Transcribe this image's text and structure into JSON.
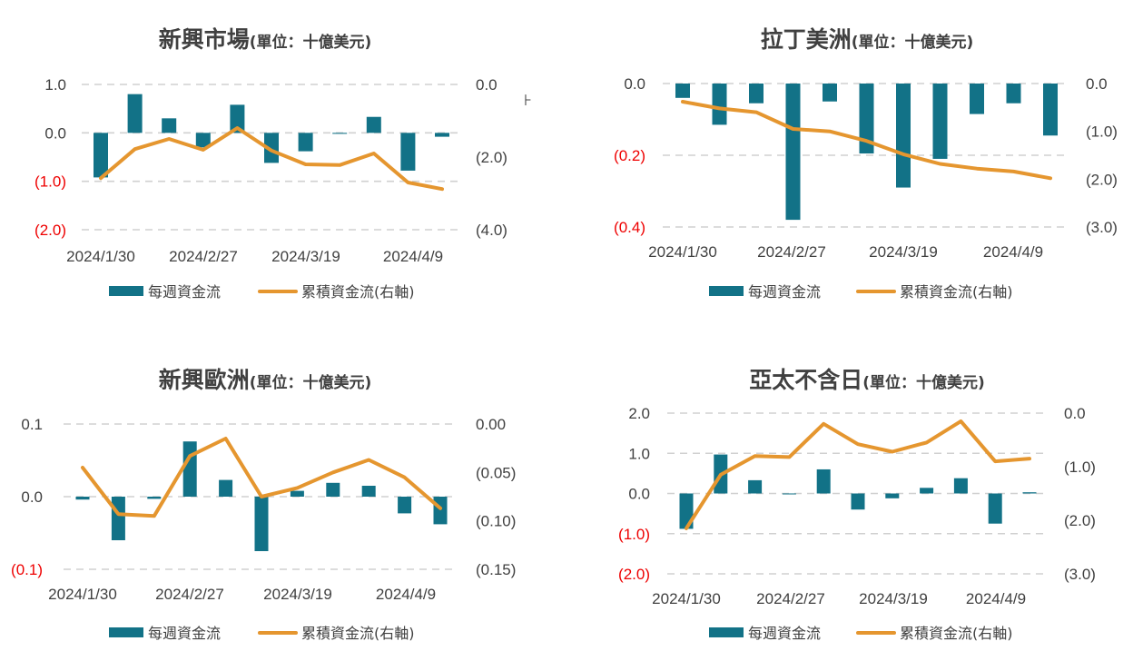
{
  "colors": {
    "bar": "#127287",
    "line": "#E5962F",
    "negative_tick": "#EE0000",
    "text": "#404040",
    "grid": "#D0D0D0"
  },
  "legend": {
    "bar_label": "每週資金流",
    "line_label": "累積資金流(右軸)"
  },
  "chart_data": [
    {
      "type": "bar+line",
      "title": "新興市場",
      "title_unit": "(單位：十億美元)",
      "x_tick_labels": [
        "2024/1/30",
        "2024/2/27",
        "2024/3/19",
        "2024/4/9"
      ],
      "left_axis": {
        "ylim": [
          -2.0,
          1.0
        ],
        "ticks": [
          1.0,
          0.0,
          -1.0,
          -2.0
        ],
        "tick_labels": [
          "1.0",
          "0.0",
          "(1.0)",
          "(2.0)"
        ]
      },
      "right_axis": {
        "ylim": [
          -4.0,
          0.0
        ],
        "ticks": [
          0.0,
          -2.0,
          -4.0
        ],
        "tick_labels": [
          "0.0",
          "(2.0)",
          "(4.0)"
        ]
      },
      "series": [
        {
          "name": "每週資金流",
          "axis": "left",
          "values": [
            -0.92,
            0.8,
            0.3,
            -0.3,
            0.58,
            -0.62,
            -0.38,
            -0.02,
            0.33,
            -0.78,
            -0.08
          ]
        },
        {
          "name": "累積資金流(右軸)",
          "axis": "right",
          "values": [
            -2.58,
            -1.78,
            -1.5,
            -1.8,
            -1.2,
            -1.82,
            -2.2,
            -2.22,
            -1.9,
            -2.7,
            -2.88
          ]
        }
      ]
    },
    {
      "type": "bar+line",
      "title": "拉丁美洲",
      "title_unit": "(單位：十億美元)",
      "x_tick_labels": [
        "2024/1/30",
        "2024/2/27",
        "2024/3/19",
        "2024/4/9"
      ],
      "left_axis": {
        "ylim": [
          -0.4,
          0.0
        ],
        "ticks": [
          0.0,
          -0.2,
          -0.4
        ],
        "tick_labels": [
          "0.0",
          "(0.2)",
          "(0.4)"
        ]
      },
      "right_axis": {
        "ylim": [
          -3.0,
          0.0
        ],
        "ticks": [
          0.0,
          -1.0,
          -2.0,
          -3.0
        ],
        "tick_labels": [
          "0.0",
          "(1.0)",
          "(2.0)",
          "(3.0)"
        ]
      },
      "series": [
        {
          "name": "每週資金流",
          "axis": "left",
          "values": [
            -0.04,
            -0.115,
            -0.055,
            -0.38,
            -0.05,
            -0.195,
            -0.29,
            -0.21,
            -0.085,
            -0.055,
            -0.145
          ]
        },
        {
          "name": "累積資金流(右軸)",
          "axis": "right",
          "values": [
            -0.38,
            -0.52,
            -0.6,
            -0.95,
            -1.0,
            -1.2,
            -1.48,
            -1.68,
            -1.78,
            -1.84,
            -1.98
          ]
        }
      ]
    },
    {
      "type": "bar+line",
      "title": "新興歐洲",
      "title_unit": "(單位：十億美元)",
      "x_tick_labels": [
        "2024/1/30",
        "2024/2/27",
        "2024/3/19",
        "2024/4/9"
      ],
      "left_axis": {
        "ylim": [
          -0.1,
          0.1
        ],
        "ticks": [
          0.1,
          0.0,
          -0.1
        ],
        "tick_labels": [
          "0.1",
          "0.0",
          "(0.1)"
        ]
      },
      "right_axis": {
        "ylim": [
          -0.15,
          0.0
        ],
        "ticks": [
          0.0,
          -0.05,
          -0.1,
          -0.15
        ],
        "tick_labels": [
          "0.00",
          "(0.05)",
          "(0.10)",
          "(0.15)"
        ]
      },
      "series": [
        {
          "name": "每週資金流",
          "axis": "left",
          "values": [
            -0.004,
            -0.06,
            -0.003,
            0.076,
            0.023,
            -0.075,
            0.008,
            0.019,
            0.015,
            -0.023,
            -0.038
          ]
        },
        {
          "name": "累積資金流(右軸)",
          "axis": "right",
          "values": [
            -0.045,
            -0.093,
            -0.095,
            -0.033,
            -0.015,
            -0.075,
            -0.066,
            -0.05,
            -0.037,
            -0.055,
            -0.087
          ]
        }
      ]
    },
    {
      "type": "bar+line",
      "title": "亞太不含日",
      "title_unit": "(單位：十億美元)",
      "x_tick_labels": [
        "2024/1/30",
        "2024/2/27",
        "2024/3/19",
        "2024/4/9"
      ],
      "left_axis": {
        "ylim": [
          -2.0,
          2.0
        ],
        "ticks": [
          2.0,
          1.0,
          0.0,
          -1.0,
          -2.0
        ],
        "tick_labels": [
          "2.0",
          "1.0",
          "0.0",
          "(1.0)",
          "(2.0)"
        ]
      },
      "right_axis": {
        "ylim": [
          -3.0,
          0.0
        ],
        "ticks": [
          0.0,
          -1.0,
          -2.0,
          -3.0
        ],
        "tick_labels": [
          "0.0",
          "(1.0)",
          "(2.0)",
          "(3.0)"
        ]
      },
      "series": [
        {
          "name": "每週資金流",
          "axis": "left",
          "values": [
            -0.88,
            0.97,
            0.33,
            0.0,
            0.6,
            -0.4,
            -0.12,
            0.14,
            0.38,
            -0.75,
            0.03
          ]
        },
        {
          "name": "累積資金流(右軸)",
          "axis": "right",
          "values": [
            -2.15,
            -1.15,
            -0.8,
            -0.82,
            -0.2,
            -0.58,
            -0.72,
            -0.55,
            -0.15,
            -0.9,
            -0.85
          ]
        }
      ]
    }
  ]
}
